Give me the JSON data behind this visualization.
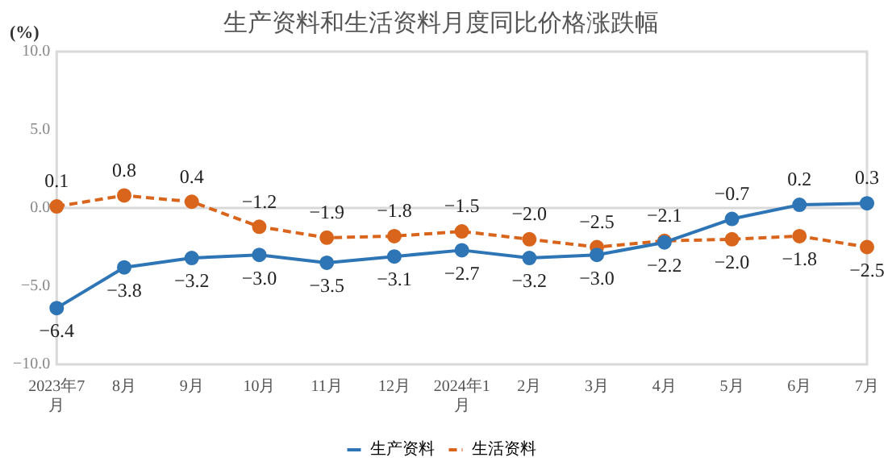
{
  "chart_data": {
    "type": "line",
    "title": "生产资料和生活资料月度同比价格涨跌幅",
    "ylabel": "(%)",
    "categories": [
      "2023年7月",
      "8月",
      "9月",
      "10月",
      "11月",
      "12月",
      "2024年1月",
      "2月",
      "3月",
      "4月",
      "5月",
      "6月",
      "7月"
    ],
    "series": [
      {
        "name": "生产资料",
        "color": "#2e75b6",
        "line_style": "solid",
        "values": [
          -6.4,
          -3.8,
          -3.2,
          -3.0,
          -3.5,
          -3.1,
          -2.7,
          -3.2,
          -3.0,
          -2.2,
          -0.7,
          0.2,
          0.3
        ],
        "value_labels": [
          "−6.4",
          "−3.8",
          "−3.2",
          "−3.0",
          "−3.5",
          "−3.1",
          "−2.7",
          "−3.2",
          "−3.0",
          "−2.2",
          "−0.7",
          "0.2",
          "0.3"
        ]
      },
      {
        "name": "生活资料",
        "color": "#d9651c",
        "line_style": "dashed",
        "values": [
          0.1,
          0.8,
          0.4,
          -1.2,
          -1.9,
          -1.8,
          -1.5,
          -2.0,
          -2.5,
          -2.1,
          -2.0,
          -1.8,
          -2.5
        ],
        "value_labels": [
          "0.1",
          "0.8",
          "0.4",
          "−1.2",
          "−1.9",
          "−1.8",
          "−1.5",
          "−2.0",
          "−2.5",
          "−2.1",
          "−2.0",
          "−1.8",
          "−2.5"
        ]
      }
    ],
    "ylim": [
      -10,
      10
    ],
    "yticks": [
      {
        "value": -10,
        "label": "−10.0"
      },
      {
        "value": -5,
        "label": "−5.0"
      },
      {
        "value": 0,
        "label": "0.0"
      },
      {
        "value": 5,
        "label": "5.0"
      },
      {
        "value": 10,
        "label": "10.0"
      }
    ],
    "ref_lines": [
      {
        "axis": "y",
        "value": 0,
        "color": "#d9d9d9"
      }
    ],
    "grid": false,
    "legend": "bottom",
    "marker": "circle"
  }
}
